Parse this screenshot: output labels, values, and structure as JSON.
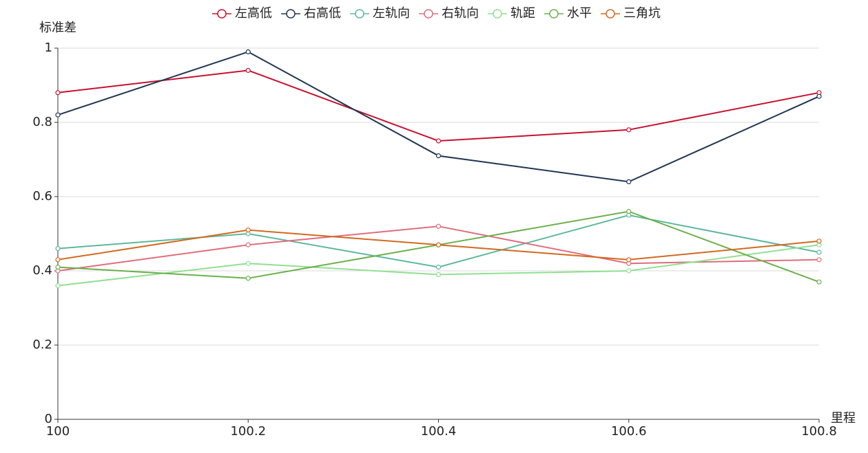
{
  "chart_data": {
    "type": "line",
    "x_label": "里程",
    "y_label": "标准差",
    "x": [
      100,
      100.2,
      100.4,
      100.6,
      100.8
    ],
    "xlim": [
      100,
      100.8
    ],
    "xticks": [
      100,
      100.2,
      100.4,
      100.6,
      100.8
    ],
    "ylim": [
      0,
      1
    ],
    "yticks": [
      0,
      0.2,
      0.4,
      0.6,
      0.8,
      1
    ],
    "grid": true,
    "legend": "top",
    "series": [
      {
        "name": "左高低",
        "color": "#c8102e",
        "values": [
          0.88,
          0.94,
          0.75,
          0.78,
          0.88
        ]
      },
      {
        "name": "右高低",
        "color": "#1f3552",
        "values": [
          0.82,
          0.99,
          0.71,
          0.64,
          0.87
        ]
      },
      {
        "name": "左轨向",
        "color": "#5cb89a",
        "values": [
          0.46,
          0.5,
          0.41,
          0.55,
          0.45
        ]
      },
      {
        "name": "右轨向",
        "color": "#e06c7c",
        "values": [
          0.4,
          0.47,
          0.52,
          0.42,
          0.43
        ]
      },
      {
        "name": "轨距",
        "color": "#90e090",
        "values": [
          0.36,
          0.42,
          0.39,
          0.4,
          0.47
        ]
      },
      {
        "name": "水平",
        "color": "#6ab04c",
        "values": [
          0.41,
          0.38,
          0.47,
          0.56,
          0.37
        ]
      },
      {
        "name": "三角坑",
        "color": "#d2691e",
        "values": [
          0.43,
          0.51,
          0.47,
          0.43,
          0.48
        ]
      }
    ]
  }
}
